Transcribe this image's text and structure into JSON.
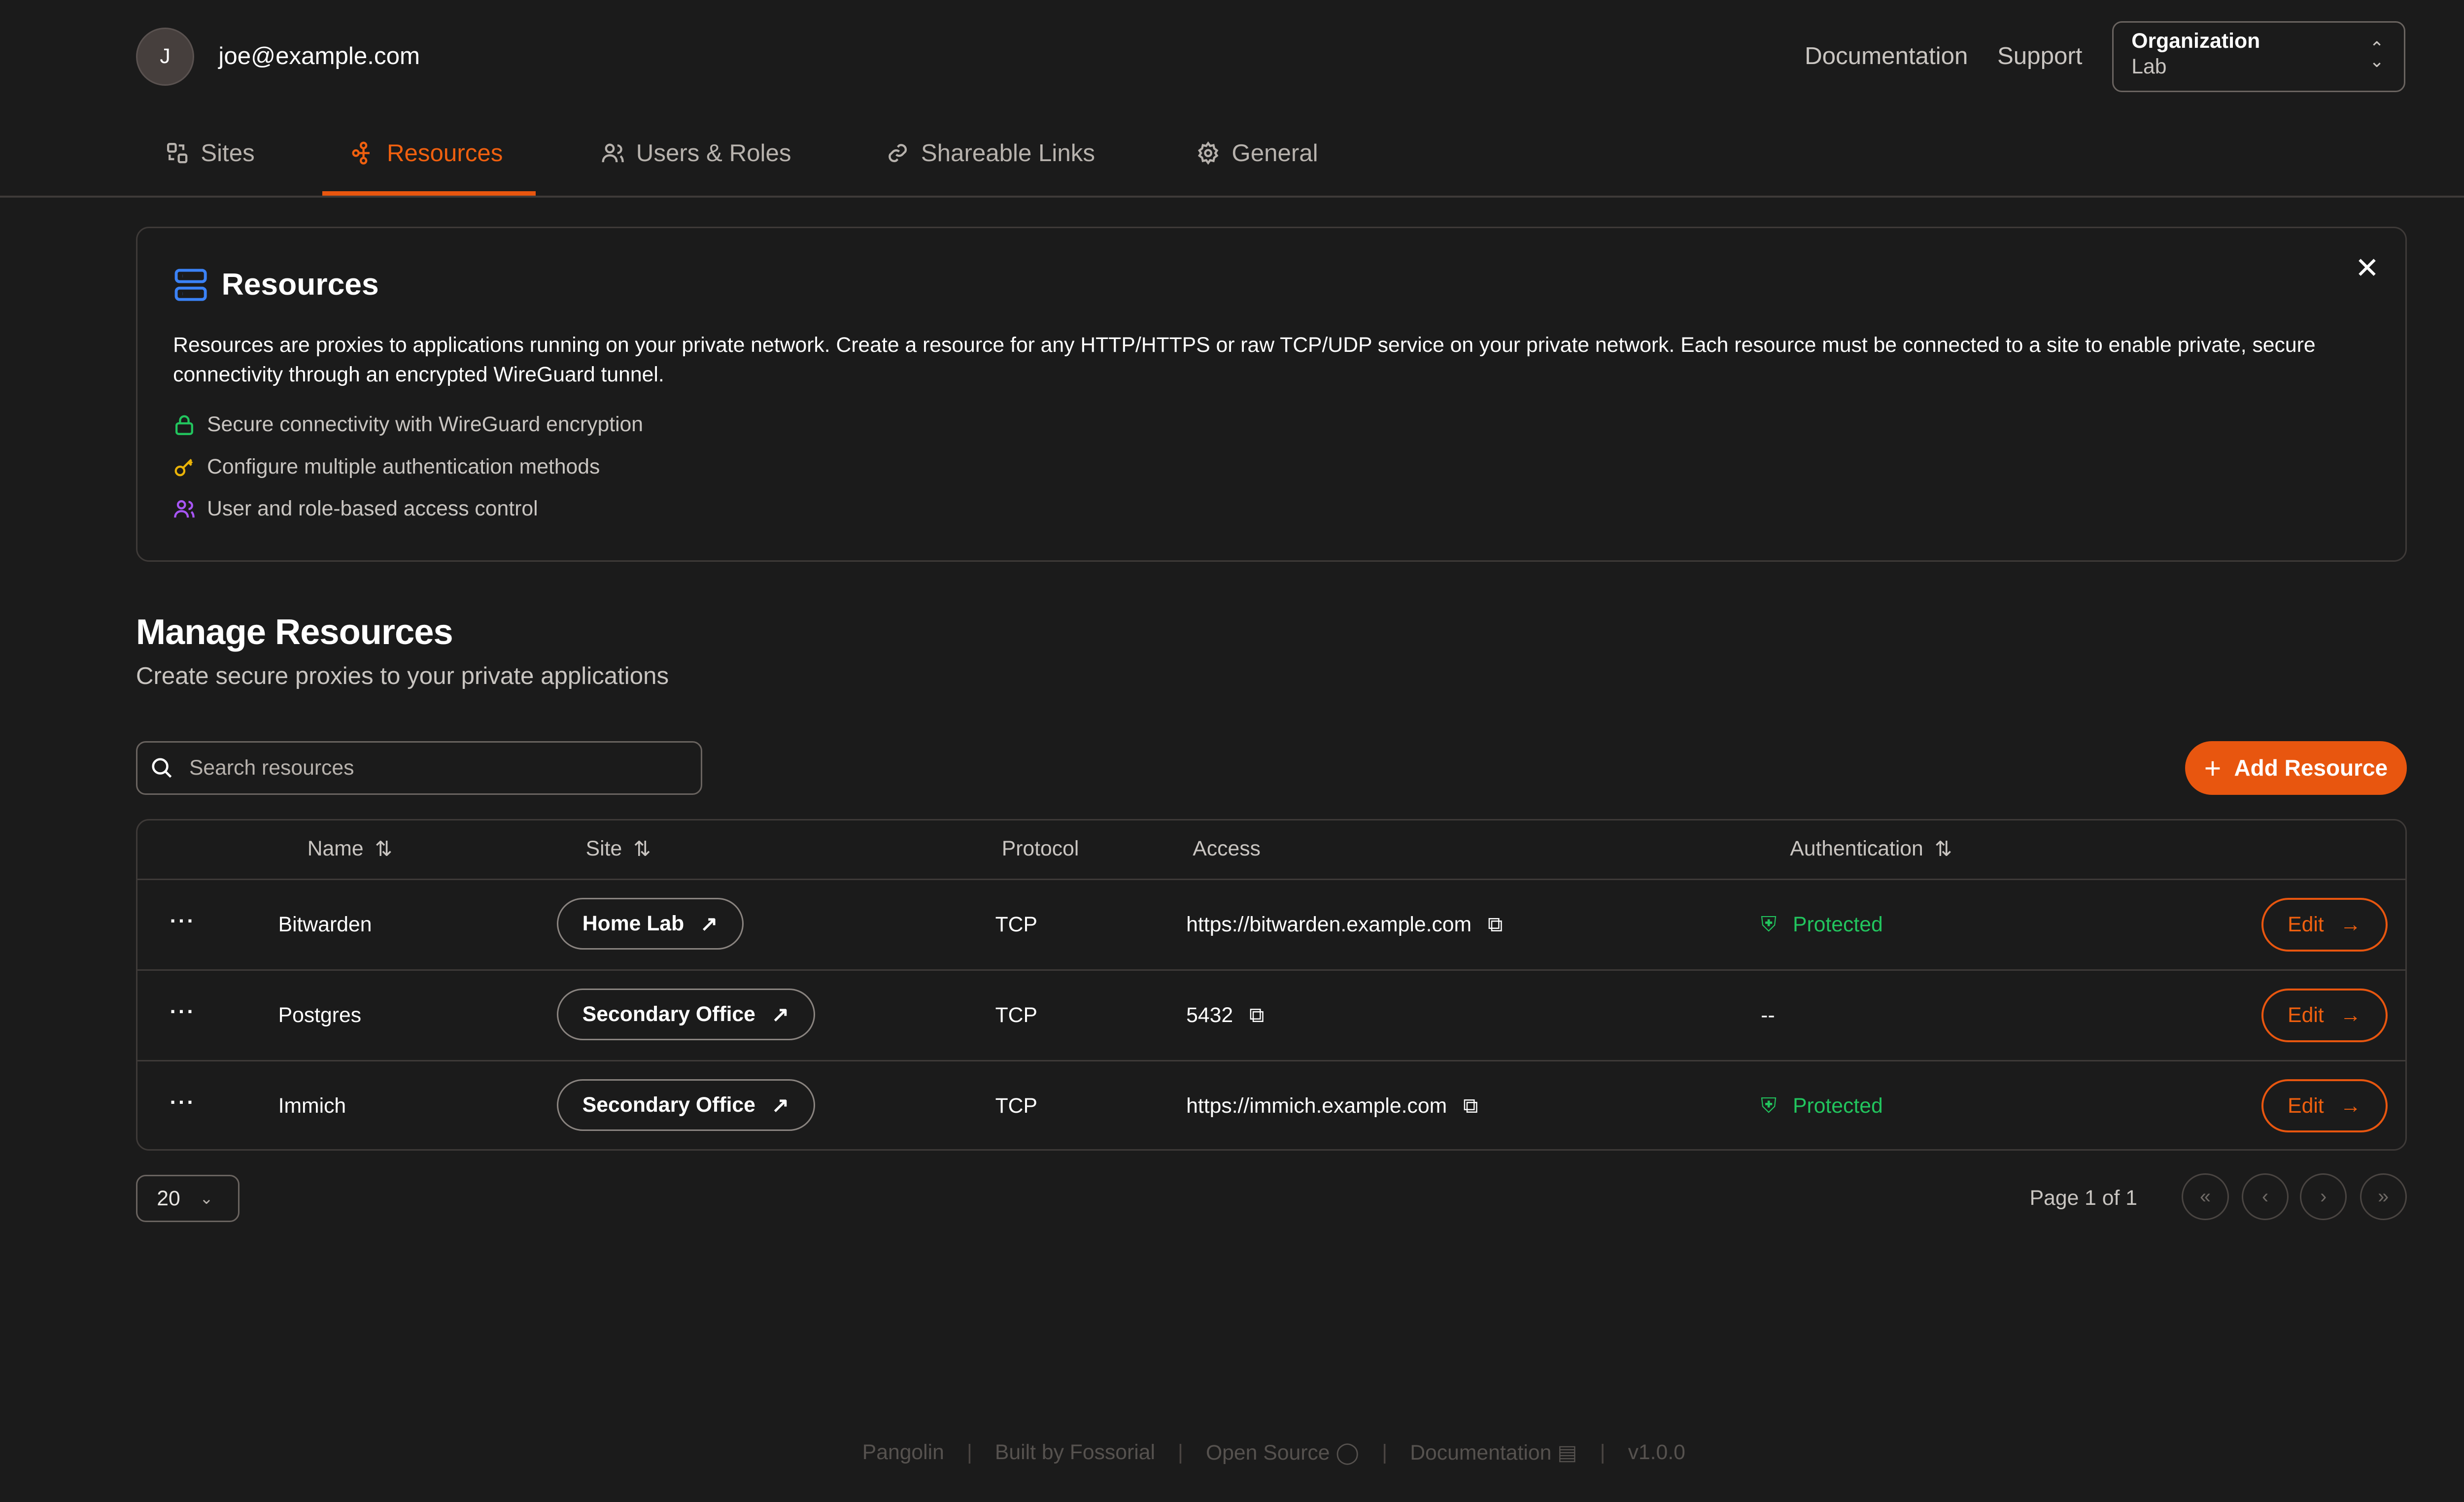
{
  "header": {
    "avatar_initial": "J",
    "email": "joe@example.com",
    "links": [
      "Documentation",
      "Support"
    ],
    "org_selector": {
      "label": "Organization",
      "value": "Lab"
    }
  },
  "tabs": [
    {
      "label": "Sites",
      "icon": "sites-icon"
    },
    {
      "label": "Resources",
      "icon": "resources-icon",
      "active": true
    },
    {
      "label": "Users & Roles",
      "icon": "users-icon"
    },
    {
      "label": "Shareable Links",
      "icon": "link-icon"
    },
    {
      "label": "General",
      "icon": "gear-icon"
    }
  ],
  "info_card": {
    "title": "Resources",
    "description": "Resources are proxies to applications running on your private network. Create a resource for any HTTP/HTTPS or raw TCP/UDP service on your private network. Each resource must be connected to a site to enable private, secure connectivity through an encrypted WireGuard tunnel.",
    "features": [
      "Secure connectivity with WireGuard encryption",
      "Configure multiple authentication methods",
      "User and role-based access control"
    ]
  },
  "main": {
    "title": "Manage Resources",
    "subtitle": "Create secure proxies to your private applications",
    "search_placeholder": "Search resources",
    "add_button": "Add Resource"
  },
  "table": {
    "columns": [
      "Name",
      "Site",
      "Protocol",
      "Access",
      "Authentication"
    ],
    "rows": [
      {
        "name": "Bitwarden",
        "site": "Home Lab",
        "protocol": "TCP",
        "access": "https://bitwarden.example.com",
        "auth": "Protected",
        "edit": "Edit"
      },
      {
        "name": "Postgres",
        "site": "Secondary Office",
        "protocol": "TCP",
        "access": "5432",
        "auth": "--",
        "edit": "Edit"
      },
      {
        "name": "Immich",
        "site": "Secondary Office",
        "protocol": "TCP",
        "access": "https://immich.example.com",
        "auth": "Protected",
        "edit": "Edit"
      }
    ]
  },
  "pagination": {
    "page_size": "20",
    "page_info": "Page 1 of 1"
  },
  "footer": {
    "items": [
      "Pangolin",
      "Built by Fossorial",
      "Open Source",
      "Documentation",
      "v1.0.0"
    ]
  },
  "colors": {
    "accent": "#e8560f",
    "background": "#1b1b1b",
    "protected": "#22c55e"
  }
}
